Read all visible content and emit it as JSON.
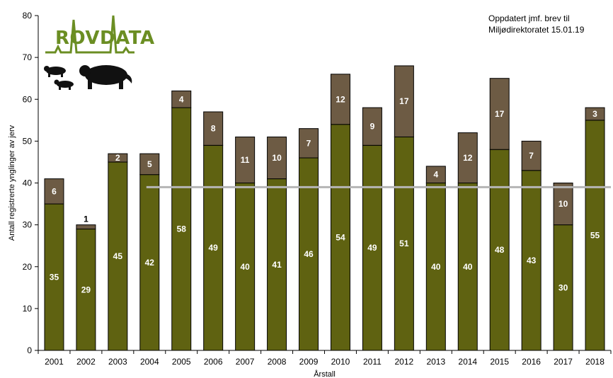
{
  "note": {
    "line1": "Oppdatert jmf. brev til",
    "line2": "Miljødirektoratet 15.01.19"
  },
  "logo": {
    "text": "ROVDATA",
    "icon": "wolverine-silhouettes"
  },
  "colors": {
    "lower": "#5f6211",
    "upper": "#6d5b44",
    "target_line": "#b5b5b5",
    "logo_green": "#6b8e23"
  },
  "chart_data": {
    "type": "bar",
    "stacked": true,
    "categories": [
      "2001",
      "2002",
      "2003",
      "2004",
      "2005",
      "2006",
      "2007",
      "2008",
      "2009",
      "2010",
      "2011",
      "2012",
      "2013",
      "2014",
      "2015",
      "2016",
      "2017",
      "2018"
    ],
    "series": [
      {
        "values": [
          35,
          29,
          45,
          42,
          58,
          49,
          40,
          41,
          46,
          54,
          49,
          51,
          40,
          40,
          48,
          43,
          30,
          55
        ]
      },
      {
        "values": [
          6,
          1,
          2,
          5,
          4,
          8,
          11,
          10,
          7,
          12,
          9,
          17,
          4,
          12,
          17,
          7,
          10,
          3
        ]
      }
    ],
    "reference_line": 39,
    "xlabel": "Årstall",
    "ylabel": "Antall registrerte ynglinger av jerv",
    "ylim": [
      0,
      80
    ],
    "yticks": [
      0,
      10,
      20,
      30,
      40,
      50,
      60,
      70,
      80
    ],
    "grid": false,
    "legend": "none"
  }
}
